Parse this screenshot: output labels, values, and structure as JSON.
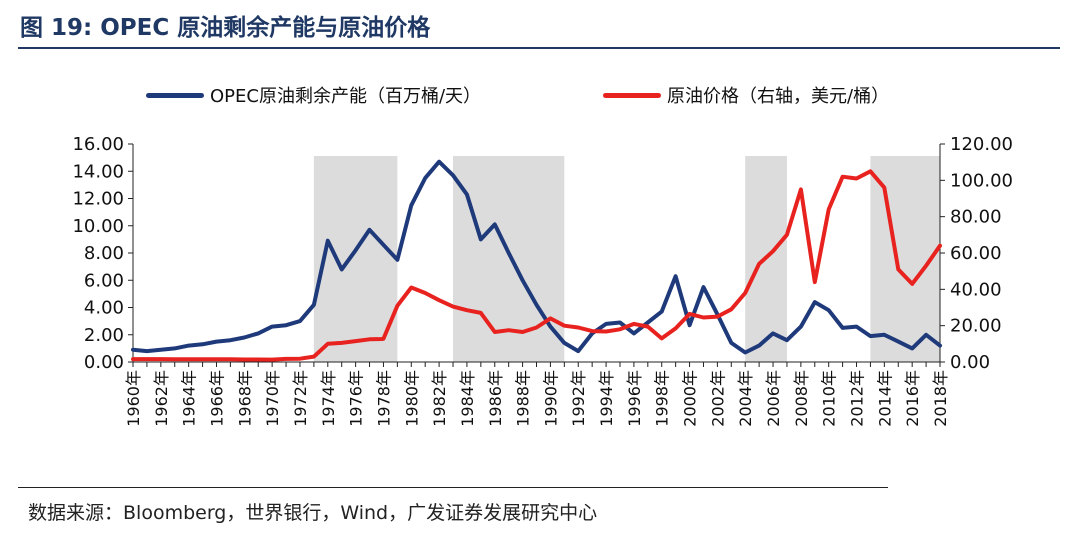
{
  "header": {
    "title": "图 19:  OPEC 原油剩余产能与原油价格"
  },
  "footer": {
    "source": "数据来源：Bloomberg，世界银行，Wind，广发证券发展研究中心"
  },
  "colors": {
    "capacity": "#1f3a7a",
    "price": "#e8231f",
    "shade": "#dcdcdc",
    "title": "#1f3864"
  },
  "chart_data": {
    "type": "line",
    "title": "图 19:  OPEC 原油剩余产能与原油价格",
    "x": [
      "1960",
      "1961",
      "1962",
      "1963",
      "1964",
      "1965",
      "1966",
      "1967",
      "1968",
      "1969",
      "1970",
      "1971",
      "1972",
      "1973",
      "1974",
      "1975",
      "1976",
      "1977",
      "1978",
      "1979",
      "1980",
      "1981",
      "1982",
      "1983",
      "1984",
      "1985",
      "1986",
      "1987",
      "1988",
      "1989",
      "1990",
      "1991",
      "1992",
      "1993",
      "1994",
      "1995",
      "1996",
      "1997",
      "1998",
      "1999",
      "2000",
      "2001",
      "2002",
      "2003",
      "2004",
      "2005",
      "2006",
      "2007",
      "2008",
      "2009",
      "2010",
      "2011",
      "2012",
      "2013",
      "2014",
      "2015",
      "2016",
      "2017",
      "2018"
    ],
    "x_tick_labels": [
      "1960年",
      "1962年",
      "1964年",
      "1966年",
      "1968年",
      "1970年",
      "1972年",
      "1974年",
      "1976年",
      "1978年",
      "1980年",
      "1982年",
      "1984年",
      "1986年",
      "1988年",
      "1990年",
      "1992年",
      "1994年",
      "1996年",
      "1998年",
      "2000年",
      "2002年",
      "2004年",
      "2006年",
      "2008年",
      "2010年",
      "2012年",
      "2014年",
      "2016年",
      "2018年"
    ],
    "y_left": {
      "ylim": [
        0,
        16
      ],
      "ticks": [
        "0.00",
        "2.00",
        "4.00",
        "6.00",
        "8.00",
        "10.00",
        "12.00",
        "14.00",
        "16.00"
      ]
    },
    "y_right": {
      "ylim": [
        0,
        120
      ],
      "ticks": [
        "0.00",
        "20.00",
        "40.00",
        "60.00",
        "80.00",
        "100.00",
        "120.00"
      ]
    },
    "shaded_periods": [
      [
        1973,
        1979
      ],
      [
        1983,
        1991
      ],
      [
        2004,
        2007
      ],
      [
        2013,
        2018
      ]
    ],
    "legend_position": "top",
    "series": [
      {
        "name": "OPEC原油剩余产能（百万桶/天）",
        "axis": "left",
        "values": [
          0.9,
          0.8,
          0.9,
          1.0,
          1.2,
          1.3,
          1.5,
          1.6,
          1.8,
          2.1,
          2.6,
          2.7,
          3.0,
          4.2,
          8.9,
          6.8,
          8.2,
          9.7,
          8.6,
          7.5,
          11.5,
          13.5,
          14.7,
          13.7,
          12.3,
          9.0,
          10.1,
          8.0,
          6.0,
          4.2,
          2.6,
          1.4,
          0.8,
          2.1,
          2.8,
          2.9,
          2.1,
          2.9,
          3.7,
          6.3,
          2.7,
          5.5,
          3.5,
          1.4,
          0.7,
          1.2,
          2.1,
          1.6,
          2.6,
          4.4,
          3.8,
          2.5,
          2.6,
          1.9,
          2.0,
          1.5,
          1.0,
          2.0,
          1.2
        ]
      },
      {
        "name": "原油价格（右轴，美元/桶）",
        "axis": "right",
        "values": [
          1.6,
          1.6,
          1.6,
          1.5,
          1.5,
          1.5,
          1.5,
          1.5,
          1.4,
          1.4,
          1.3,
          1.7,
          1.8,
          3.0,
          10.0,
          10.5,
          11.5,
          12.5,
          12.7,
          31.0,
          41.0,
          38.0,
          34.0,
          30.5,
          28.5,
          27.0,
          16.5,
          17.5,
          16.5,
          19.0,
          24.0,
          20.0,
          19.0,
          17.0,
          16.8,
          18.0,
          21.0,
          19.5,
          13.0,
          18.5,
          26.5,
          24.5,
          25.0,
          29.0,
          38.0,
          54.0,
          61.0,
          70.0,
          95.0,
          44.0,
          84.0,
          102.0,
          101.0,
          105.0,
          96.0,
          51.0,
          43.0,
          53.0,
          64.0
        ]
      }
    ]
  }
}
